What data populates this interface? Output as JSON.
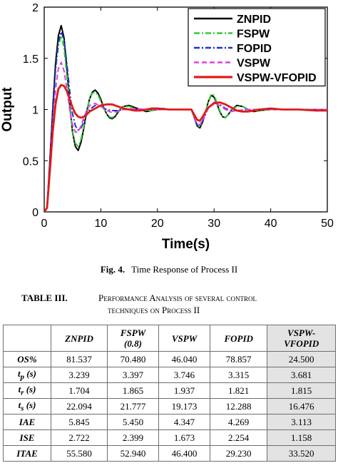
{
  "figure": {
    "label": "Fig. 4.",
    "caption": "Time Response of Process II"
  },
  "chart_data": {
    "type": "line",
    "xlabel": "Time(s)",
    "ylabel": "Output",
    "xlim": [
      0,
      50
    ],
    "ylim": [
      0,
      2
    ],
    "xticks": [
      "0",
      "10",
      "20",
      "30",
      "40",
      "50"
    ],
    "yticks": [
      "0",
      "0.5",
      "1",
      "1.5",
      "2"
    ],
    "grid": false,
    "legend_position": "top-right",
    "series": [
      {
        "name": "ZNPID",
        "color": "#000000",
        "style": "solid",
        "x": [
          0,
          0.5,
          1,
          1.5,
          2,
          2.5,
          3,
          3.5,
          4,
          4.5,
          5,
          5.5,
          6,
          6.5,
          7,
          7.5,
          8,
          8.5,
          9,
          9.5,
          10,
          10.5,
          11,
          11.5,
          12,
          12.5,
          13,
          13.5,
          14,
          15,
          16,
          17,
          18,
          19,
          20,
          21,
          22,
          23,
          24,
          25,
          26,
          26.5,
          27,
          27.5,
          28,
          28.5,
          29,
          29.5,
          30,
          30.5,
          31,
          31.5,
          32,
          32.5,
          33,
          34,
          35,
          36,
          37,
          38,
          40,
          42,
          45,
          48,
          50
        ],
        "y": [
          0,
          0.04,
          0.5,
          1.0,
          1.45,
          1.72,
          1.82,
          1.7,
          1.4,
          1.05,
          0.78,
          0.64,
          0.6,
          0.68,
          0.82,
          0.98,
          1.1,
          1.17,
          1.19,
          1.16,
          1.1,
          1.02,
          0.96,
          0.92,
          0.91,
          0.93,
          0.97,
          1.01,
          1.03,
          1.04,
          1.02,
          1.0,
          0.98,
          0.99,
          1.0,
          1.01,
          1.0,
          1.0,
          1.0,
          1.0,
          1.0,
          0.92,
          0.84,
          0.82,
          0.88,
          0.98,
          1.08,
          1.14,
          1.12,
          1.06,
          0.98,
          0.93,
          0.92,
          0.95,
          0.99,
          1.04,
          1.03,
          1.0,
          0.98,
          0.99,
          1.0,
          1.0,
          1.0,
          1.0,
          1.0
        ]
      },
      {
        "name": "FSPW",
        "color": "#33cc33",
        "style": "dashdot",
        "x": [
          0,
          0.5,
          1,
          1.5,
          2,
          2.5,
          3,
          3.5,
          4,
          4.5,
          5,
          5.5,
          6,
          6.5,
          7,
          7.5,
          8,
          8.5,
          9,
          9.5,
          10,
          10.5,
          11,
          11.5,
          12,
          12.5,
          13,
          13.5,
          14,
          15,
          16,
          17,
          18,
          19,
          20,
          21,
          22,
          23,
          24,
          25,
          26,
          26.5,
          27,
          27.5,
          28,
          28.5,
          29,
          29.5,
          30,
          30.5,
          31,
          31.5,
          32,
          32.5,
          33,
          34,
          35,
          36,
          37,
          38,
          40,
          42,
          45,
          48,
          50
        ],
        "y": [
          0,
          0.04,
          0.48,
          0.95,
          1.38,
          1.62,
          1.72,
          1.6,
          1.33,
          1.02,
          0.79,
          0.67,
          0.64,
          0.71,
          0.84,
          0.99,
          1.1,
          1.16,
          1.17,
          1.14,
          1.08,
          1.01,
          0.96,
          0.93,
          0.92,
          0.94,
          0.98,
          1.01,
          1.03,
          1.03,
          1.01,
          1.0,
          0.99,
          0.99,
          1.0,
          1.0,
          1.0,
          1.0,
          1.0,
          1.0,
          1.0,
          0.92,
          0.85,
          0.83,
          0.89,
          0.98,
          1.08,
          1.15,
          1.14,
          1.07,
          0.99,
          0.93,
          0.92,
          0.95,
          0.99,
          1.03,
          1.03,
          1.0,
          0.99,
          0.99,
          1.0,
          1.0,
          1.0,
          1.0,
          1.0
        ]
      },
      {
        "name": "FOPID",
        "color": "#2233bb",
        "style": "dashdot",
        "x": [
          0,
          0.5,
          1,
          1.5,
          2,
          2.5,
          3,
          3.5,
          4,
          4.5,
          5,
          5.5,
          6,
          6.5,
          7,
          7.5,
          8,
          9,
          10,
          11,
          12,
          13,
          14,
          16,
          18,
          20,
          22,
          24,
          26,
          26.5,
          27,
          27.5,
          28,
          29,
          30,
          31,
          32,
          33,
          34,
          36,
          38,
          40,
          42,
          45,
          48,
          50
        ],
        "y": [
          0,
          0.04,
          0.5,
          0.98,
          1.4,
          1.66,
          1.76,
          1.68,
          1.45,
          1.18,
          0.96,
          0.84,
          0.8,
          0.82,
          0.88,
          0.95,
          1.0,
          1.04,
          1.03,
          1.0,
          0.99,
          0.99,
          1.0,
          1.0,
          1.0,
          1.0,
          1.0,
          1.0,
          1.0,
          0.92,
          0.85,
          0.84,
          0.89,
          1.02,
          1.07,
          1.05,
          1.01,
          0.99,
          0.99,
          1.0,
          1.0,
          1.0,
          1.0,
          1.0,
          1.0,
          1.0
        ]
      },
      {
        "name": "VSPW",
        "color": "#e040e0",
        "style": "dashed",
        "x": [
          0,
          0.5,
          1,
          1.5,
          2,
          2.5,
          3,
          3.5,
          4,
          4.5,
          5,
          5.5,
          6,
          6.5,
          7,
          7.5,
          8,
          9,
          10,
          11,
          12,
          13,
          14,
          16,
          18,
          20,
          22,
          24,
          26,
          26.5,
          27,
          27.5,
          28,
          29,
          30,
          31,
          32,
          33,
          34,
          36,
          38,
          40,
          42,
          45,
          48,
          50
        ],
        "y": [
          0,
          0.04,
          0.42,
          0.85,
          1.2,
          1.4,
          1.46,
          1.38,
          1.2,
          1.0,
          0.85,
          0.78,
          0.78,
          0.84,
          0.92,
          0.99,
          1.04,
          1.06,
          1.03,
          0.99,
          0.97,
          0.98,
          1.0,
          1.01,
          1.0,
          1.0,
          1.0,
          1.0,
          1.0,
          0.92,
          0.86,
          0.85,
          0.9,
          1.02,
          1.07,
          1.04,
          1.0,
          0.98,
          0.99,
          1.0,
          1.0,
          1.0,
          1.0,
          1.0,
          1.0,
          1.0
        ]
      },
      {
        "name": "VSPW-VFOPID",
        "color": "#e01a1a",
        "style": "solid",
        "x": [
          0,
          0.5,
          1,
          1.5,
          2,
          2.5,
          3,
          3.5,
          4,
          4.5,
          5,
          5.5,
          6,
          6.5,
          7,
          7.5,
          8,
          9,
          10,
          11,
          12,
          13,
          14,
          15,
          16,
          17,
          18,
          19,
          20,
          22,
          24,
          25,
          26,
          26.5,
          27,
          27.5,
          28,
          28.5,
          29,
          30,
          31,
          32,
          33,
          34,
          35,
          36,
          37,
          38,
          40,
          42,
          45,
          48,
          50
        ],
        "y": [
          0,
          0.04,
          0.4,
          0.78,
          1.05,
          1.2,
          1.24,
          1.23,
          1.18,
          1.1,
          1.02,
          0.96,
          0.93,
          0.92,
          0.93,
          0.95,
          0.98,
          1.01,
          1.04,
          1.05,
          1.05,
          1.03,
          1.01,
          1.0,
          0.99,
          0.99,
          1.0,
          1.01,
          1.01,
          1.0,
          1.0,
          1.0,
          1.0,
          0.95,
          0.9,
          0.89,
          0.93,
          0.98,
          1.02,
          1.06,
          1.07,
          1.05,
          1.02,
          0.99,
          0.98,
          0.98,
          0.99,
          1.0,
          1.01,
          1.0,
          1.0,
          0.99,
          0.99
        ]
      }
    ]
  },
  "table": {
    "label": "TABLE III.",
    "title_line1": "Performance Analysis of several control",
    "title_line2": "techniques on Process II",
    "columns": [
      {
        "line1": "",
        "line2": ""
      },
      {
        "line1": "ZNPID",
        "line2": ""
      },
      {
        "line1": "FSPW",
        "line2": "(0.8)"
      },
      {
        "line1": "VSPW",
        "line2": ""
      },
      {
        "line1": "FOPID",
        "line2": ""
      },
      {
        "line1": "VSPW-",
        "line2": "VFOPID"
      }
    ],
    "rows": [
      {
        "label_main": "OS%",
        "label_sub": "",
        "label_tail": "",
        "values": [
          "81.537",
          "70.480",
          "46.040",
          "78.857",
          "24.500"
        ]
      },
      {
        "label_main": "t",
        "label_sub": "p",
        "label_tail": " (s)",
        "values": [
          "3.239",
          "3.397",
          "3.746",
          "3.315",
          "3.681"
        ]
      },
      {
        "label_main": "t",
        "label_sub": "r",
        "label_tail": " (s)",
        "values": [
          "1.704",
          "1.865",
          "1.937",
          "1.821",
          "1.815"
        ]
      },
      {
        "label_main": "t",
        "label_sub": "s",
        "label_tail": " (s)",
        "values": [
          "22.094",
          "21.777",
          "19.173",
          "12.288",
          "16.476"
        ]
      },
      {
        "label_main": "IAE",
        "label_sub": "",
        "label_tail": "",
        "values": [
          "5.845",
          "5.450",
          "4.347",
          "4.269",
          "3.113"
        ]
      },
      {
        "label_main": "ISE",
        "label_sub": "",
        "label_tail": "",
        "values": [
          "2.722",
          "2.399",
          "1.673",
          "2.254",
          "1.158"
        ]
      },
      {
        "label_main": "ITAE",
        "label_sub": "",
        "label_tail": "",
        "values": [
          "55.580",
          "52.940",
          "46.400",
          "29.230",
          "33.520"
        ]
      }
    ]
  }
}
